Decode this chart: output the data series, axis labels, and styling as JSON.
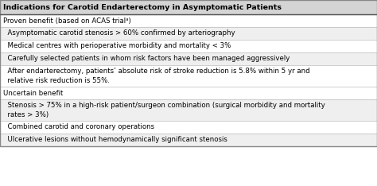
{
  "title": "Indications for Carotid Endarterectomy in Asymptomatic Patients",
  "title_bg": "#d4d4d4",
  "bg_color": "#ffffff",
  "rows": [
    {
      "text": "Proven benefit (based on ACAS trialᵃ)",
      "indent": 0,
      "bg": "#ffffff"
    },
    {
      "text": "  Asymptomatic carotid stenosis > 60% confirmed by arteriography",
      "indent": 1,
      "bg": "#efefef"
    },
    {
      "text": "  Medical centres with perioperative morbidity and mortality < 3%",
      "indent": 1,
      "bg": "#ffffff"
    },
    {
      "text": "  Carefully selected patients in whom risk factors have been managed aggressively",
      "indent": 1,
      "bg": "#efefef"
    },
    {
      "text": "  After endarterectomy, patients’ absolute risk of stroke reduction is 5.8% within 5 yr and\n  relative risk reduction is 55%.",
      "indent": 1,
      "bg": "#ffffff",
      "tall": true
    },
    {
      "text": "Uncertain benefit",
      "indent": 0,
      "bg": "#ffffff"
    },
    {
      "text": "  Stenosis > 75% in a high-risk patient/surgeon combination (surgical morbidity and mortality\n  rates > 3%)",
      "indent": 1,
      "bg": "#efefef",
      "tall": true
    },
    {
      "text": "  Combined carotid and coronary operations",
      "indent": 1,
      "bg": "#ffffff"
    },
    {
      "text": "  Ulcerative lesions without hemodynamically significant stenosis",
      "indent": 1,
      "bg": "#efefef"
    }
  ],
  "font_size": 6.2,
  "title_font_size": 6.8,
  "border_color": "#555555",
  "line_color": "#bbbbbb",
  "outer_border_color": "#888888"
}
